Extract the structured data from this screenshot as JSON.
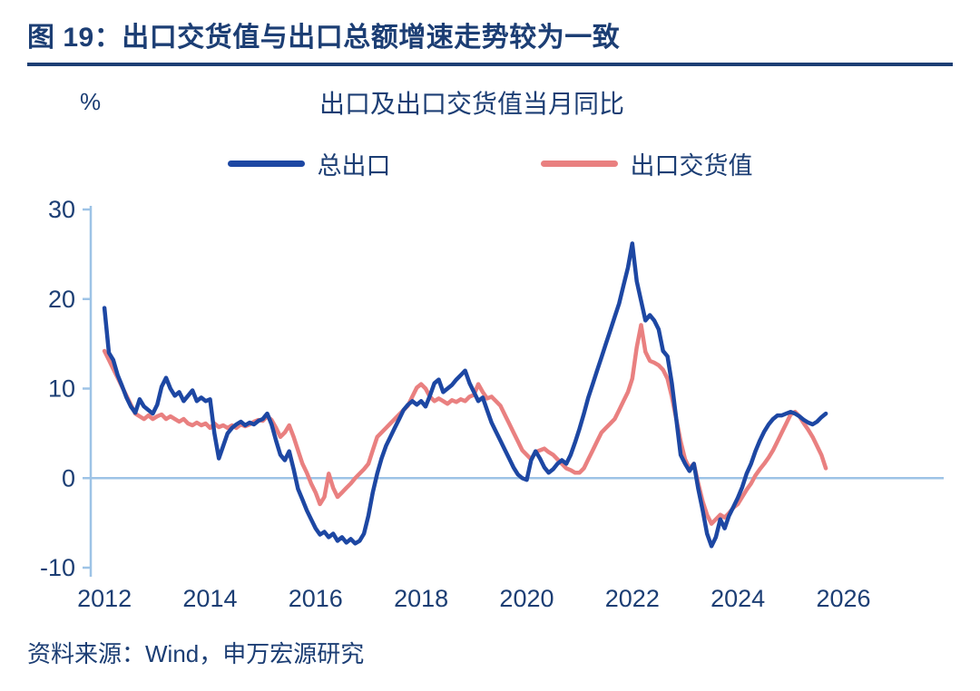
{
  "page": {
    "title": "图 19：出口交货值与出口总额增速走势较为一致",
    "source": "资料来源：Wind，申万宏源研究"
  },
  "colors": {
    "navy": "#1c3e74",
    "axis": "#9dc3e6",
    "blue_line": "#1d47a3",
    "red_line": "#e98080"
  },
  "chart_data": {
    "type": "line",
    "title": "出口及出口交货值当月同比",
    "ylabel": "%",
    "xlabel": "",
    "ylim": [
      -10,
      30
    ],
    "yticks": [
      30,
      20,
      10,
      0,
      -10
    ],
    "xticks": [
      2012,
      2014,
      2016,
      2018,
      2020,
      2022,
      2024,
      2026
    ],
    "xlim": [
      2011.74,
      2027.9
    ],
    "x_start_year": 2012,
    "x_frequency": "monthly",
    "grid": false,
    "zero_line": true,
    "legend_position": "top",
    "series": [
      {
        "name": "总出口",
        "color": "#1d47a3",
        "values": [
          19.0,
          14.0,
          13.2,
          11.5,
          10.3,
          9.0,
          8.0,
          7.3,
          8.8,
          8.0,
          7.6,
          7.2,
          8.2,
          10.2,
          11.2,
          10.0,
          9.2,
          9.6,
          8.6,
          9.2,
          9.8,
          8.6,
          9.0,
          8.6,
          8.8,
          5.0,
          2.2,
          3.6,
          5.0,
          5.6,
          6.0,
          6.3,
          5.9,
          6.2,
          6.0,
          6.4,
          6.6,
          7.2,
          6.0,
          4.2,
          2.6,
          2.0,
          3.0,
          1.0,
          -1.2,
          -2.4,
          -3.6,
          -4.6,
          -5.6,
          -6.3,
          -6.0,
          -6.6,
          -6.2,
          -7.0,
          -6.6,
          -7.2,
          -6.8,
          -7.3,
          -7.0,
          -6.2,
          -4.2,
          -1.6,
          0.5,
          2.2,
          3.6,
          4.6,
          5.6,
          6.6,
          7.6,
          8.2,
          8.6,
          8.2,
          8.6,
          8.0,
          9.2,
          10.6,
          11.0,
          9.6,
          10.0,
          10.4,
          11.0,
          11.5,
          12.0,
          10.6,
          9.6,
          8.6,
          9.0,
          7.6,
          6.2,
          5.2,
          4.2,
          3.2,
          2.2,
          1.2,
          0.4,
          0.0,
          -0.2,
          2.0,
          3.0,
          2.2,
          1.2,
          0.6,
          1.0,
          1.6,
          2.0,
          1.6,
          2.6,
          4.0,
          5.5,
          7.2,
          9.0,
          10.5,
          12.0,
          13.5,
          15.0,
          16.5,
          18.0,
          19.5,
          21.5,
          23.5,
          26.2,
          22.0,
          19.8,
          17.6,
          18.2,
          17.6,
          16.6,
          14.2,
          13.6,
          10.6,
          6.6,
          2.6,
          1.6,
          0.8,
          1.6,
          -1.2,
          -3.6,
          -6.2,
          -7.6,
          -6.6,
          -4.6,
          -5.6,
          -4.2,
          -3.2,
          -2.2,
          -1.0,
          0.5,
          1.6,
          3.0,
          4.2,
          5.2,
          6.0,
          6.6,
          7.0,
          7.0,
          7.2,
          7.4,
          7.2,
          6.9,
          6.5,
          6.2,
          6.0,
          6.3,
          6.8,
          7.2
        ]
      },
      {
        "name": "出口交货值",
        "color": "#e98080",
        "values": [
          14.2,
          13.2,
          12.2,
          11.2,
          10.2,
          9.2,
          8.2,
          7.2,
          6.9,
          6.6,
          7.0,
          6.6,
          6.9,
          7.1,
          6.6,
          6.9,
          6.6,
          6.3,
          6.6,
          6.1,
          5.9,
          6.2,
          5.9,
          6.1,
          5.6,
          6.1,
          5.7,
          5.9,
          5.6,
          5.9,
          5.6,
          6.0,
          5.8,
          6.0,
          6.3,
          6.5,
          6.4,
          6.9,
          6.5,
          5.6,
          4.6,
          5.1,
          5.9,
          4.6,
          3.1,
          1.6,
          0.6,
          -0.6,
          -1.6,
          -2.9,
          -2.1,
          0.5,
          -1.1,
          -2.1,
          -1.6,
          -1.1,
          -0.6,
          0.0,
          0.5,
          1.0,
          1.6,
          3.1,
          4.6,
          5.1,
          5.6,
          6.1,
          6.6,
          7.1,
          7.6,
          8.1,
          9.1,
          10.1,
          10.5,
          10.0,
          9.1,
          8.6,
          8.9,
          8.6,
          8.3,
          8.7,
          8.5,
          8.8,
          8.6,
          9.1,
          9.3,
          10.5,
          9.6,
          8.9,
          9.1,
          8.6,
          8.1,
          7.1,
          6.1,
          5.1,
          4.1,
          3.1,
          2.6,
          2.1,
          2.9,
          3.1,
          3.3,
          2.9,
          2.6,
          2.1,
          1.6,
          1.1,
          0.9,
          0.6,
          0.6,
          1.1,
          2.1,
          3.1,
          4.1,
          5.1,
          5.6,
          6.1,
          6.6,
          7.6,
          8.6,
          9.6,
          11.1,
          14.6,
          17.1,
          14.1,
          13.1,
          12.9,
          12.6,
          12.1,
          11.1,
          9.1,
          6.6,
          4.1,
          2.1,
          1.1,
          1.6,
          -0.6,
          -2.6,
          -4.1,
          -5.1,
          -4.6,
          -4.1,
          -4.4,
          -3.9,
          -3.3,
          -2.9,
          -2.1,
          -1.3,
          -0.6,
          0.3,
          1.0,
          1.6,
          2.3,
          3.1,
          4.1,
          5.1,
          6.1,
          7.1,
          7.4,
          6.9,
          6.1,
          5.4,
          4.6,
          3.6,
          2.6,
          1.1
        ]
      }
    ]
  }
}
